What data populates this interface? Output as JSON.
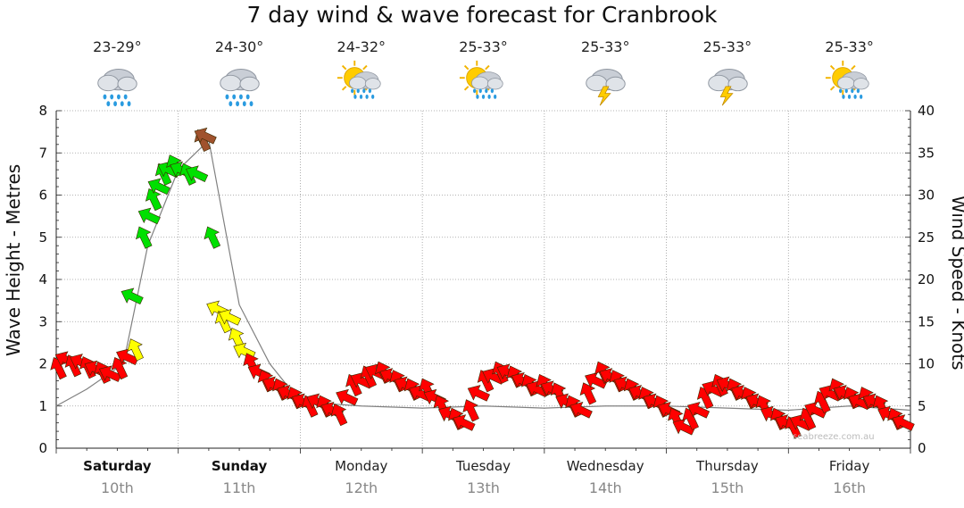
{
  "chart_data": {
    "type": "line",
    "title": "7 day wind & wave forecast for Cranbrook",
    "ylabel_left": "Wave Height - Metres",
    "ylabel_right": "Wind Speed - Knots",
    "ylim_left": [
      0,
      8
    ],
    "ylim_right": [
      0,
      40
    ],
    "yticks_left": [
      "0",
      "1",
      "2",
      "3",
      "4",
      "5",
      "6",
      "7",
      "8"
    ],
    "yticks_right": [
      "0",
      "5",
      "10",
      "15",
      "20",
      "25",
      "30",
      "35",
      "40"
    ],
    "grid": true,
    "days": [
      {
        "day": "Saturday",
        "date": "10th",
        "bold": true,
        "temp": "23-29°",
        "icon": "rain-cloud-icon"
      },
      {
        "day": "Sunday",
        "date": "11th",
        "bold": true,
        "temp": "24-30°",
        "icon": "rain-cloud-icon"
      },
      {
        "day": "Monday",
        "date": "12th",
        "bold": false,
        "temp": "24-32°",
        "icon": "sun-rain-icon"
      },
      {
        "day": "Tuesday",
        "date": "13th",
        "bold": false,
        "temp": "25-33°",
        "icon": "sun-rain-icon"
      },
      {
        "day": "Wednesday",
        "date": "14th",
        "bold": false,
        "temp": "25-33°",
        "icon": "storm-cloud-icon"
      },
      {
        "day": "Thursday",
        "date": "15th",
        "bold": false,
        "temp": "25-33°",
        "icon": "storm-cloud-icon"
      },
      {
        "day": "Friday",
        "date": "16th",
        "bold": false,
        "temp": "25-33°",
        "icon": "sun-rain-icon"
      }
    ],
    "series": [
      {
        "name": "Wave Height",
        "color": "#808080",
        "x_days": [
          0.0,
          0.25,
          0.5,
          0.55,
          0.75,
          1.0,
          1.25,
          1.5,
          1.75,
          2.0,
          2.5,
          3.0,
          3.5,
          4.0,
          4.5,
          5.0,
          5.5,
          6.0,
          6.5,
          7.0
        ],
        "values": [
          1.0,
          1.4,
          1.9,
          2.0,
          4.8,
          6.6,
          7.3,
          3.4,
          2.0,
          1.1,
          1.0,
          0.95,
          1.0,
          0.95,
          1.0,
          1.0,
          0.95,
          0.9,
          1.0,
          0.9
        ]
      },
      {
        "name": "Wind Speed",
        "arrows": [
          {
            "x": 0.02,
            "kn": 9.5
          },
          {
            "x": 0.08,
            "kn": 10.5
          },
          {
            "x": 0.14,
            "kn": 9.8
          },
          {
            "x": 0.2,
            "kn": 10.2
          },
          {
            "x": 0.26,
            "kn": 9.6
          },
          {
            "x": 0.32,
            "kn": 9.4
          },
          {
            "x": 0.38,
            "kn": 9.0
          },
          {
            "x": 0.44,
            "kn": 8.8
          },
          {
            "x": 0.52,
            "kn": 9.5
          },
          {
            "x": 0.58,
            "kn": 10.8
          },
          {
            "x": 0.65,
            "kn": 11.7
          },
          {
            "x": 0.62,
            "kn": 18.0
          },
          {
            "x": 0.72,
            "kn": 25.0
          },
          {
            "x": 0.76,
            "kn": 27.5
          },
          {
            "x": 0.8,
            "kn": 29.5
          },
          {
            "x": 0.84,
            "kn": 31.0
          },
          {
            "x": 0.88,
            "kn": 32.5
          },
          {
            "x": 0.92,
            "kn": 33.0
          },
          {
            "x": 0.97,
            "kn": 33.5
          },
          {
            "x": 1.02,
            "kn": 33.0
          },
          {
            "x": 1.08,
            "kn": 32.5
          },
          {
            "x": 1.15,
            "kn": 32.5
          },
          {
            "x": 1.2,
            "kn": 36.5
          },
          {
            "x": 1.22,
            "kn": 37.0
          },
          {
            "x": 1.28,
            "kn": 25.0
          },
          {
            "x": 1.32,
            "kn": 16.5
          },
          {
            "x": 1.37,
            "kn": 15.0
          },
          {
            "x": 1.42,
            "kn": 15.5
          },
          {
            "x": 1.48,
            "kn": 13.0
          },
          {
            "x": 1.54,
            "kn": 11.5
          },
          {
            "x": 1.6,
            "kn": 10.0
          },
          {
            "x": 1.66,
            "kn": 9.0
          },
          {
            "x": 1.72,
            "kn": 8.0
          },
          {
            "x": 1.78,
            "kn": 7.5
          },
          {
            "x": 1.84,
            "kn": 7.0
          },
          {
            "x": 1.9,
            "kn": 6.5
          },
          {
            "x": 1.96,
            "kn": 6.0
          },
          {
            "x": 2.02,
            "kn": 5.5
          },
          {
            "x": 2.08,
            "kn": 5.0
          },
          {
            "x": 2.14,
            "kn": 5.5
          },
          {
            "x": 2.2,
            "kn": 5.0
          },
          {
            "x": 2.26,
            "kn": 4.5
          },
          {
            "x": 2.32,
            "kn": 4.0
          },
          {
            "x": 2.38,
            "kn": 6.0
          },
          {
            "x": 2.44,
            "kn": 7.5
          },
          {
            "x": 2.5,
            "kn": 8.0
          },
          {
            "x": 2.56,
            "kn": 8.5
          },
          {
            "x": 2.62,
            "kn": 9.0
          },
          {
            "x": 2.68,
            "kn": 9.0
          },
          {
            "x": 2.74,
            "kn": 8.5
          },
          {
            "x": 2.8,
            "kn": 8.0
          },
          {
            "x": 2.86,
            "kn": 7.5
          },
          {
            "x": 2.92,
            "kn": 7.0
          },
          {
            "x": 2.98,
            "kn": 6.5
          },
          {
            "x": 3.04,
            "kn": 7.0
          },
          {
            "x": 3.1,
            "kn": 6.0
          },
          {
            "x": 3.16,
            "kn": 5.0
          },
          {
            "x": 3.22,
            "kn": 4.0
          },
          {
            "x": 3.28,
            "kn": 3.5
          },
          {
            "x": 3.34,
            "kn": 3.0
          },
          {
            "x": 3.4,
            "kn": 4.5
          },
          {
            "x": 3.46,
            "kn": 6.5
          },
          {
            "x": 3.52,
            "kn": 8.0
          },
          {
            "x": 3.58,
            "kn": 8.5
          },
          {
            "x": 3.64,
            "kn": 9.0
          },
          {
            "x": 3.7,
            "kn": 9.0
          },
          {
            "x": 3.76,
            "kn": 8.5
          },
          {
            "x": 3.82,
            "kn": 8.0
          },
          {
            "x": 3.88,
            "kn": 7.5
          },
          {
            "x": 3.94,
            "kn": 7.0
          },
          {
            "x": 4.0,
            "kn": 7.5
          },
          {
            "x": 4.06,
            "kn": 7.0
          },
          {
            "x": 4.12,
            "kn": 6.5
          },
          {
            "x": 4.18,
            "kn": 5.5
          },
          {
            "x": 4.24,
            "kn": 5.0
          },
          {
            "x": 4.3,
            "kn": 4.5
          },
          {
            "x": 4.36,
            "kn": 6.5
          },
          {
            "x": 4.42,
            "kn": 8.0
          },
          {
            "x": 4.48,
            "kn": 9.0
          },
          {
            "x": 4.54,
            "kn": 8.5
          },
          {
            "x": 4.6,
            "kn": 8.0
          },
          {
            "x": 4.66,
            "kn": 7.5
          },
          {
            "x": 4.72,
            "kn": 7.0
          },
          {
            "x": 4.78,
            "kn": 6.5
          },
          {
            "x": 4.84,
            "kn": 6.0
          },
          {
            "x": 4.9,
            "kn": 5.5
          },
          {
            "x": 4.96,
            "kn": 5.0
          },
          {
            "x": 5.02,
            "kn": 4.5
          },
          {
            "x": 5.08,
            "kn": 3.5
          },
          {
            "x": 5.14,
            "kn": 2.5
          },
          {
            "x": 5.2,
            "kn": 3.5
          },
          {
            "x": 5.26,
            "kn": 4.5
          },
          {
            "x": 5.32,
            "kn": 6.0
          },
          {
            "x": 5.38,
            "kn": 7.0
          },
          {
            "x": 5.44,
            "kn": 7.5
          },
          {
            "x": 5.5,
            "kn": 7.5
          },
          {
            "x": 5.56,
            "kn": 7.0
          },
          {
            "x": 5.62,
            "kn": 6.5
          },
          {
            "x": 5.68,
            "kn": 6.0
          },
          {
            "x": 5.74,
            "kn": 5.5
          },
          {
            "x": 5.8,
            "kn": 5.0
          },
          {
            "x": 5.86,
            "kn": 4.0
          },
          {
            "x": 5.92,
            "kn": 3.5
          },
          {
            "x": 5.98,
            "kn": 3.0
          },
          {
            "x": 6.04,
            "kn": 2.5
          },
          {
            "x": 6.1,
            "kn": 3.0
          },
          {
            "x": 6.16,
            "kn": 3.5
          },
          {
            "x": 6.22,
            "kn": 4.5
          },
          {
            "x": 6.28,
            "kn": 5.5
          },
          {
            "x": 6.34,
            "kn": 6.5
          },
          {
            "x": 6.4,
            "kn": 7.0
          },
          {
            "x": 6.46,
            "kn": 6.5
          },
          {
            "x": 6.52,
            "kn": 6.0
          },
          {
            "x": 6.58,
            "kn": 5.5
          },
          {
            "x": 6.64,
            "kn": 6.0
          },
          {
            "x": 6.7,
            "kn": 5.5
          },
          {
            "x": 6.76,
            "kn": 5.0
          },
          {
            "x": 6.82,
            "kn": 4.0
          },
          {
            "x": 6.88,
            "kn": 3.5
          },
          {
            "x": 6.94,
            "kn": 3.0
          }
        ]
      }
    ],
    "arrow_colors": {
      "light": "#ff0000",
      "moderate": "#ffff00",
      "strong": "#00e000",
      "gale": "#a0522d"
    },
    "watermark": "seabreeze.com.au"
  }
}
